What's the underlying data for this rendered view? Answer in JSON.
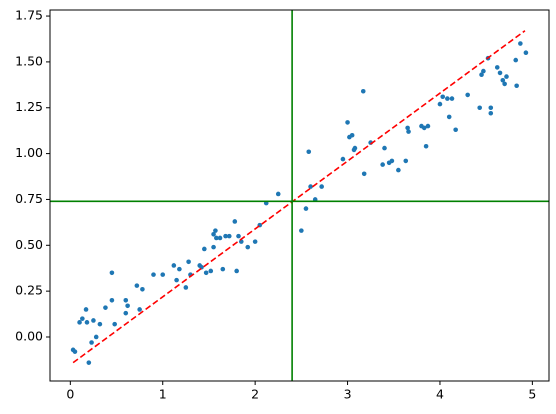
{
  "chart_data": {
    "type": "scatter",
    "color": "#1f77b4",
    "x": [
      0.03,
      0.05,
      0.1,
      0.13,
      0.17,
      0.18,
      0.23,
      0.25,
      0.28,
      0.32,
      0.38,
      0.45,
      0.45,
      0.48,
      0.2,
      0.6,
      0.6,
      0.62,
      0.72,
      0.75,
      0.78,
      0.9,
      1.0,
      1.12,
      1.15,
      1.18,
      1.25,
      1.28,
      1.3,
      1.4,
      1.42,
      1.45,
      1.47,
      1.52,
      1.55,
      1.55,
      1.57,
      1.58,
      1.62,
      1.65,
      1.68,
      1.72,
      1.78,
      1.8,
      1.82,
      1.85,
      1.92,
      2.0,
      2.05,
      2.12,
      2.25,
      2.5,
      2.55,
      2.58,
      2.6,
      2.65,
      2.72,
      2.95,
      3.0,
      3.02,
      3.05,
      3.07,
      3.08,
      3.17,
      3.18,
      3.25,
      3.38,
      3.4,
      3.45,
      3.48,
      3.55,
      3.63,
      3.65,
      3.66,
      3.8,
      3.83,
      3.85,
      3.87,
      4.0,
      4.03,
      4.08,
      4.1,
      4.13,
      4.17,
      4.3,
      4.43,
      4.45,
      4.47,
      4.52,
      4.55,
      4.55,
      4.62,
      4.65,
      4.68,
      4.7,
      4.72,
      4.82,
      4.83,
      4.87,
      4.93
    ],
    "y": [
      -0.07,
      -0.08,
      0.08,
      0.1,
      0.15,
      0.08,
      -0.03,
      0.09,
      0.0,
      0.07,
      0.16,
      0.2,
      0.35,
      0.07,
      -0.14,
      0.13,
      0.2,
      0.17,
      0.28,
      0.15,
      0.26,
      0.34,
      0.34,
      0.39,
      0.31,
      0.37,
      0.27,
      0.41,
      0.34,
      0.39,
      0.38,
      0.48,
      0.35,
      0.36,
      0.49,
      0.56,
      0.58,
      0.54,
      0.54,
      0.37,
      0.55,
      0.55,
      0.63,
      0.36,
      0.55,
      0.52,
      0.49,
      0.52,
      0.61,
      0.73,
      0.78,
      0.58,
      0.7,
      1.01,
      0.82,
      0.75,
      0.82,
      0.97,
      1.17,
      1.09,
      1.1,
      1.02,
      1.03,
      1.34,
      0.89,
      1.06,
      0.94,
      1.03,
      0.95,
      0.96,
      0.91,
      0.96,
      1.14,
      1.12,
      1.15,
      1.14,
      1.04,
      1.15,
      1.27,
      1.31,
      1.3,
      1.2,
      1.3,
      1.13,
      1.32,
      1.25,
      1.43,
      1.45,
      1.52,
      1.22,
      1.25,
      1.47,
      1.44,
      1.4,
      1.38,
      1.42,
      1.51,
      1.37,
      1.6,
      1.55
    ],
    "fit_line": {
      "x": [
        0.03,
        4.92
      ],
      "values": [
        -0.14,
        1.67
      ],
      "color": "#ff0000",
      "dashed": true
    },
    "vline": {
      "value": 2.4,
      "color": "#008000"
    },
    "hline": {
      "value": 0.74,
      "color": "#008000"
    },
    "xlim": [
      -0.22,
      5.18
    ],
    "ylim": [
      -0.24,
      1.783
    ],
    "xticks": [
      0,
      1,
      2,
      3,
      4,
      5
    ],
    "yticks": [
      {
        "value": 0,
        "label": "0.00"
      },
      {
        "value": 0.25,
        "label": "0.25"
      },
      {
        "value": 0.5,
        "label": "0.50"
      },
      {
        "value": 0.75,
        "label": "0.75"
      },
      {
        "value": 1,
        "label": "1.00"
      },
      {
        "value": 1.25,
        "label": "1.25"
      },
      {
        "value": 1.5,
        "label": "1.50"
      },
      {
        "value": 1.75,
        "label": "1.75"
      }
    ]
  }
}
